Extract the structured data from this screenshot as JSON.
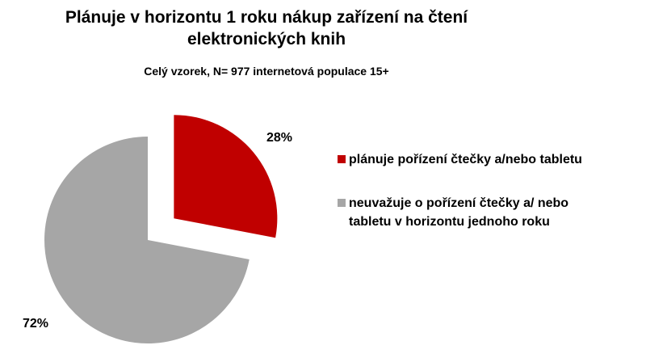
{
  "chart_data": {
    "type": "pie",
    "title": "Plánuje v horizontu 1 roku nákup zařízení na čtení elektronických knih",
    "subtitle": "Celý vzorek, N= 977 internetová populace 15+",
    "categories": [
      "plánuje pořízení čtečky a/nebo tabletu",
      "neuvažuje o pořízení čtečky a/ nebo tabletu v horizontu jednoho roku"
    ],
    "values": [
      28,
      72
    ],
    "value_labels": [
      "28%",
      "72%"
    ],
    "colors": [
      "#c00000",
      "#a6a6a6"
    ],
    "exploded": [
      true,
      false
    ]
  }
}
